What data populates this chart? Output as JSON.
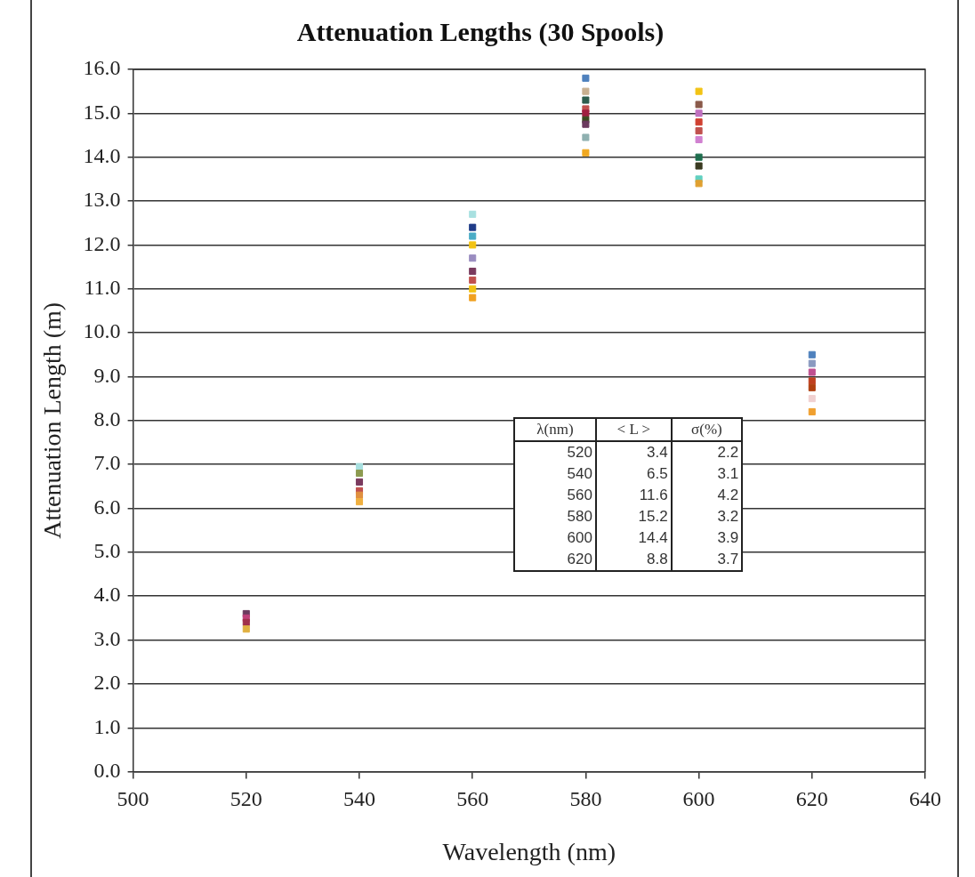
{
  "chart_data": {
    "type": "scatter",
    "title": "Attenuation Lengths (30 Spools)",
    "xlabel": "Wavelength (nm)",
    "ylabel": "Attenuation Length (m)",
    "xlim": [
      500,
      640
    ],
    "xticks": [
      500,
      520,
      540,
      560,
      580,
      600,
      620,
      640
    ],
    "ylim": [
      0,
      16
    ],
    "yticks": [
      {
        "value": 0,
        "label": "0.0"
      },
      {
        "value": 1,
        "label": "1.0"
      },
      {
        "value": 2,
        "label": "2.0"
      },
      {
        "value": 3,
        "label": "3.0"
      },
      {
        "value": 4,
        "label": "4.0"
      },
      {
        "value": 5,
        "label": "5.0"
      },
      {
        "value": 6,
        "label": "6.0"
      },
      {
        "value": 7,
        "label": "7.0"
      },
      {
        "value": 8,
        "label": "8.0"
      },
      {
        "value": 9,
        "label": "9.0"
      },
      {
        "value": 10,
        "label": "10.0"
      },
      {
        "value": 11,
        "label": "11.0"
      },
      {
        "value": 12,
        "label": "12.0"
      },
      {
        "value": 13,
        "label": "13.0"
      },
      {
        "value": 14,
        "label": "14.0"
      },
      {
        "value": 15,
        "label": "15.0"
      },
      {
        "value": 16,
        "label": "16.0"
      }
    ],
    "grid": "y",
    "legend": false,
    "marker": "square",
    "series": [
      {
        "x": [
          520,
          520,
          520,
          520,
          540,
          540,
          540,
          540,
          540,
          540,
          560,
          560,
          560,
          560,
          560,
          560,
          560,
          560,
          560,
          580,
          580,
          580,
          580,
          580,
          580,
          580,
          580,
          580,
          600,
          600,
          600,
          600,
          600,
          600,
          600,
          600,
          600,
          600,
          620,
          620,
          620,
          620,
          620,
          620,
          620
        ],
        "values": [
          3.6,
          3.5,
          3.4,
          3.25,
          6.95,
          6.8,
          6.6,
          6.4,
          6.3,
          6.15,
          12.7,
          12.4,
          12.2,
          12.0,
          11.7,
          11.4,
          11.2,
          11.0,
          10.8,
          15.8,
          15.5,
          15.3,
          15.1,
          15.0,
          14.85,
          14.75,
          14.45,
          14.1,
          15.5,
          15.2,
          15.0,
          14.8,
          14.6,
          14.4,
          14.0,
          13.8,
          13.5,
          13.4,
          9.5,
          9.3,
          9.1,
          8.9,
          8.75,
          8.5,
          8.2
        ],
        "colors": [
          "#6b3a5e",
          "#c0407a",
          "#a0304a",
          "#e0b040",
          "#a8e0e0",
          "#8c9a50",
          "#7a3a5e",
          "#c0504d",
          "#e09040",
          "#f0b040",
          "#a8e0e0",
          "#1f3c88",
          "#4bacc6",
          "#f2c314",
          "#9a8cc0",
          "#7a3a5e",
          "#c0504d",
          "#f2c314",
          "#f0a020",
          "#4f81bd",
          "#c8b090",
          "#2e5e4e",
          "#c0504d",
          "#a02040",
          "#3a4a20",
          "#6b3a5e",
          "#8fb0b0",
          "#f0a820",
          "#f2c314",
          "#8a5a4a",
          "#c070c0",
          "#d04030",
          "#c0504d",
          "#d080d0",
          "#1e6e4e",
          "#3a3a20",
          "#60d0c0",
          "#e0a030",
          "#4f81bd",
          "#8a9ac0",
          "#c05090",
          "#c04020",
          "#b04010",
          "#f0d0d0",
          "#f0a030"
        ]
      }
    ],
    "annotations": [
      "λ(nm)",
      "< L >",
      "σ(%)",
      "520",
      "3.4",
      "2.2",
      "540",
      "6.5",
      "3.1",
      "560",
      "11.6",
      "4.2",
      "580",
      "15.2",
      "3.2",
      "600",
      "14.4",
      "3.9",
      "620",
      "8.8",
      "3.7"
    ]
  }
}
